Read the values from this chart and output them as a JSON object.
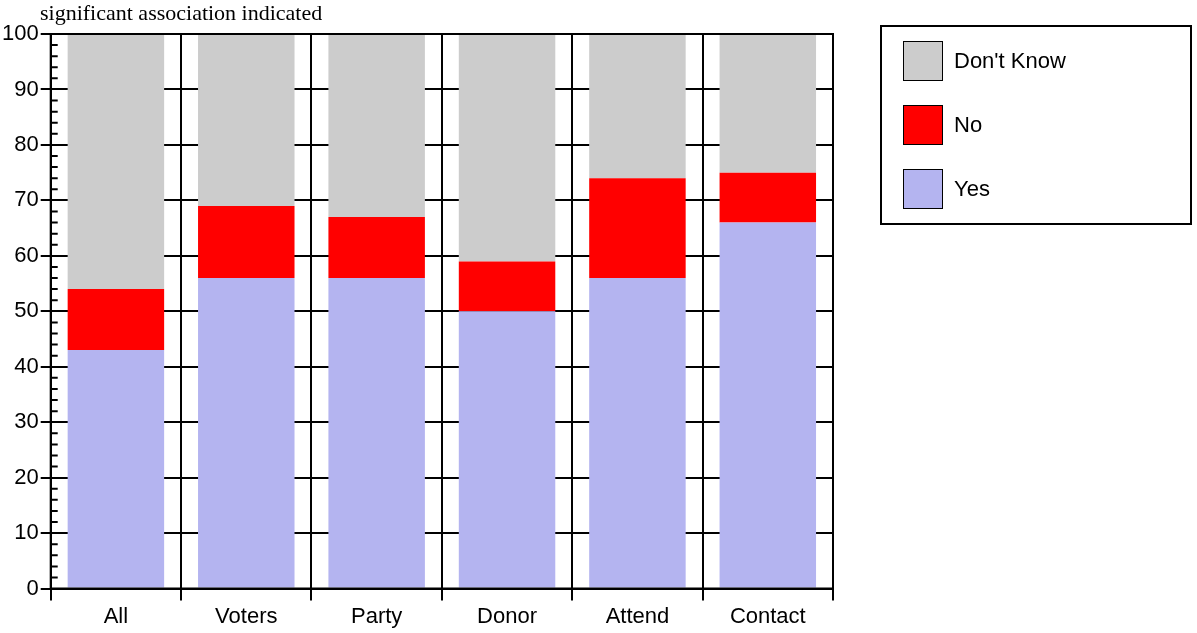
{
  "chart_data": {
    "type": "bar",
    "stacked": true,
    "annotations": [
      "significant association indicated"
    ],
    "categories": [
      "All",
      "Voters",
      "Party",
      "Donor",
      "Attend",
      "Contact"
    ],
    "series": [
      {
        "name": "Yes",
        "color": "#b4b4f0",
        "values": [
          43,
          56,
          56,
          50,
          56,
          66
        ]
      },
      {
        "name": "No",
        "color": "#ff0000",
        "values": [
          11,
          13,
          11,
          9,
          18,
          9
        ]
      },
      {
        "name": "Don't Know",
        "color": "#cccccc",
        "values": [
          46,
          31,
          33,
          41,
          26,
          25
        ]
      }
    ],
    "ylim": [
      0,
      100
    ],
    "yticks": [
      0,
      10,
      20,
      30,
      40,
      50,
      60,
      70,
      80,
      90,
      100
    ],
    "grid": true,
    "legend": "top right"
  }
}
